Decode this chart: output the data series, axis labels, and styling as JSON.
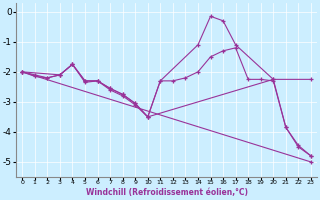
{
  "xlabel": "Windchill (Refroidissement éolien,°C)",
  "bg_color": "#cceeff",
  "line_color": "#993399",
  "xlim": [
    -0.5,
    23.5
  ],
  "ylim": [
    -5.5,
    0.3
  ],
  "xticks": [
    0,
    1,
    2,
    3,
    4,
    5,
    6,
    7,
    8,
    9,
    10,
    11,
    12,
    13,
    14,
    15,
    16,
    17,
    18,
    19,
    20,
    21,
    22,
    23
  ],
  "yticks": [
    -5,
    -4,
    -3,
    -2,
    -1,
    0
  ],
  "series": [
    {
      "x": [
        0,
        23
      ],
      "y": [
        -2.0,
        -5.0
      ]
    },
    {
      "x": [
        0,
        1,
        2,
        3,
        4,
        5,
        6,
        7,
        8,
        9,
        10,
        11,
        14,
        15,
        16,
        17,
        20,
        21,
        22,
        23
      ],
      "y": [
        -2.0,
        -2.1,
        -2.2,
        -2.1,
        -1.75,
        -2.3,
        -2.3,
        -2.55,
        -2.75,
        -3.05,
        -3.5,
        -2.3,
        -1.1,
        -0.15,
        -0.3,
        -1.1,
        -2.25,
        -3.85,
        -4.45,
        -4.8
      ]
    },
    {
      "x": [
        0,
        1,
        2,
        3,
        4,
        5,
        6,
        7,
        8,
        9,
        10,
        11,
        12,
        13,
        14,
        15,
        16,
        17,
        18,
        19,
        20,
        21,
        22,
        23
      ],
      "y": [
        -2.0,
        -2.15,
        -2.2,
        -2.1,
        -1.75,
        -2.35,
        -2.3,
        -2.6,
        -2.8,
        -3.1,
        -3.5,
        -2.3,
        -2.3,
        -2.2,
        -2.0,
        -1.5,
        -1.3,
        -1.2,
        -2.25,
        -2.25,
        -2.3,
        -3.85,
        -4.5,
        -4.8
      ]
    },
    {
      "x": [
        0,
        3,
        4,
        5,
        6,
        7,
        8,
        9,
        10,
        20,
        23
      ],
      "y": [
        -2.0,
        -2.1,
        -1.75,
        -2.3,
        -2.3,
        -2.55,
        -2.75,
        -3.05,
        -3.5,
        -2.25,
        -2.25
      ]
    }
  ]
}
